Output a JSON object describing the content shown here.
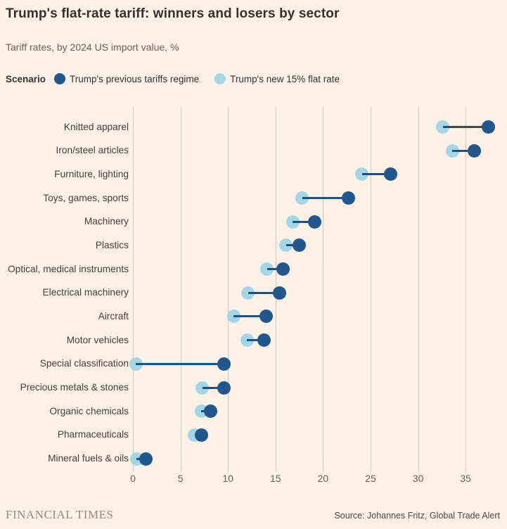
{
  "header": {
    "title": "Trump's flat-rate tariff: winners and losers by sector",
    "subtitle": "Tariff rates, by 2024 US import value, %"
  },
  "legend": {
    "label": "Scenario",
    "items": [
      {
        "name": "Trump's previous tariffs regime",
        "color": "#20578F"
      },
      {
        "name": "Trump's new 15% flat rate",
        "color": "#A3D7E8"
      }
    ]
  },
  "chart_data": {
    "type": "dumbbell",
    "title": "Trump's flat-rate tariff: winners and losers by sector",
    "subtitle": "Tariff rates, by 2024 US import value, %",
    "xlabel": "",
    "ylabel": "",
    "xlim": [
      0,
      37.6
    ],
    "x_ticks": [
      0,
      5,
      10,
      15,
      20,
      25,
      30,
      35
    ],
    "grid": "vertical",
    "legend_position": "top",
    "categories": [
      "Knitted apparel",
      "Iron/steel articles",
      "Furniture, lighting",
      "Toys, games, sports",
      "Machinery",
      "Plastics",
      "Optical, medical instruments",
      "Electrical machinery",
      "Aircraft",
      "Motor vehicles",
      "Special classification",
      "Precious metals & stones",
      "Organic chemicals",
      "Pharmaceuticals",
      "Mineral fuels & oils"
    ],
    "series": [
      {
        "name": "Trump's previous tariffs regime",
        "color": "#20578F",
        "line_color": "#1F4F87",
        "values": [
          37.4,
          35.9,
          27.1,
          22.7,
          19.1,
          17.5,
          15.8,
          15.4,
          14.0,
          13.8,
          9.6,
          9.6,
          8.2,
          7.2,
          1.4
        ]
      },
      {
        "name": "Trump's new 15% flat rate",
        "color": "#A3D7E8",
        "values": [
          32.6,
          33.6,
          24.1,
          17.8,
          16.8,
          16.1,
          14.1,
          12.1,
          10.6,
          12.0,
          0.3,
          7.3,
          7.2,
          6.5,
          0.4
        ]
      }
    ]
  },
  "footer": {
    "brand": "FINANCIAL TIMES",
    "source": "Source: Johannes Fritz, Global Trade Alert"
  }
}
